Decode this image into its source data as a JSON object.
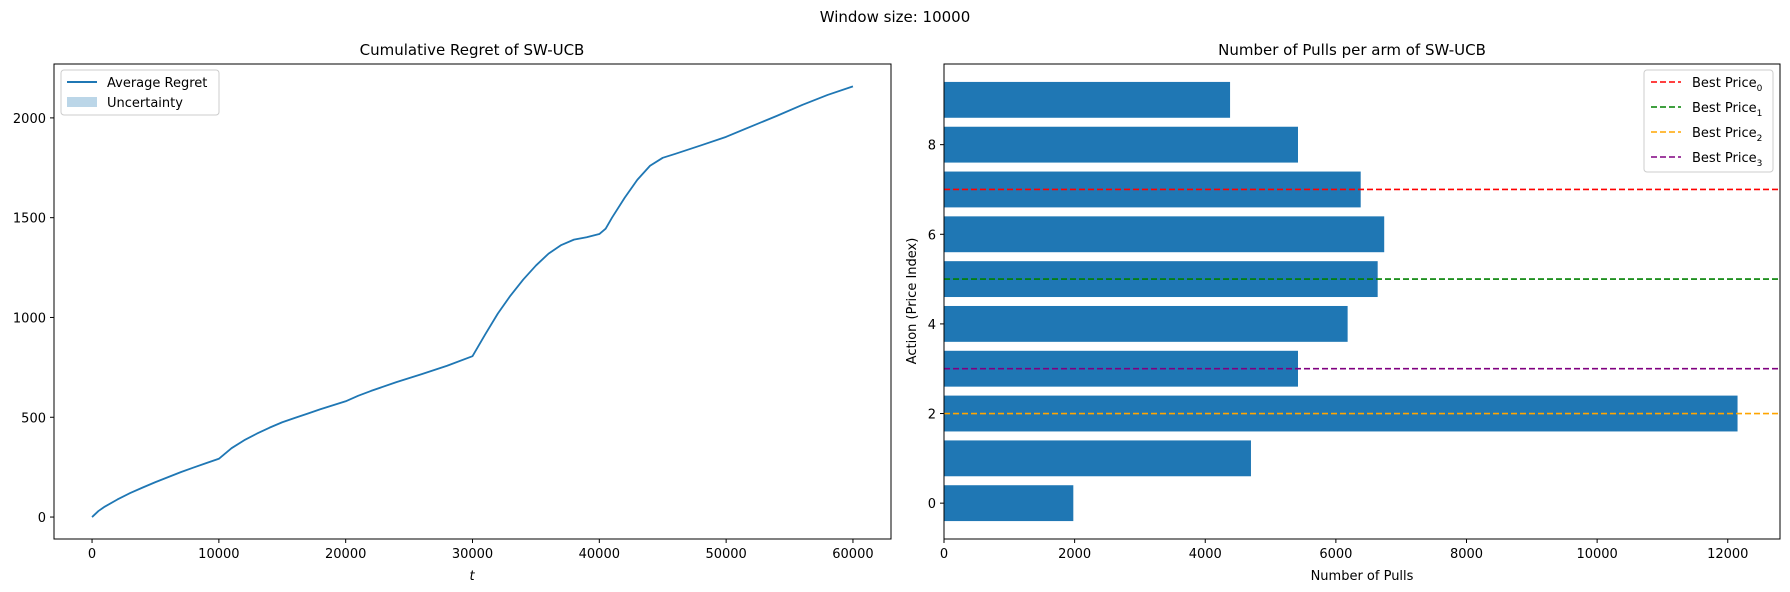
{
  "figure": {
    "suptitle": "Window size: 10000"
  },
  "chart_data": [
    {
      "type": "line",
      "title": "Cumulative Regret of SW-UCB",
      "xlabel": "t",
      "ylabel": "",
      "xlim": [
        -3000,
        63000
      ],
      "ylim": [
        -110,
        2270
      ],
      "xticks": [
        0,
        10000,
        20000,
        30000,
        40000,
        50000,
        60000
      ],
      "yticks": [
        0,
        500,
        1000,
        1500,
        2000
      ],
      "legend_position": "upper-left",
      "series": [
        {
          "name": "Average Regret",
          "color": "#1f77b4",
          "x": [
            0,
            500,
            1000,
            2000,
            3000,
            4000,
            5000,
            6000,
            7000,
            8000,
            9000,
            10000,
            11000,
            12000,
            13000,
            14000,
            15000,
            16000,
            17000,
            18000,
            19000,
            20000,
            21000,
            22000,
            24000,
            26000,
            28000,
            30000,
            31000,
            32000,
            33000,
            34000,
            35000,
            36000,
            37000,
            38000,
            39000,
            40000,
            40500,
            41000,
            42000,
            43000,
            44000,
            45000,
            46000,
            48000,
            50000,
            52000,
            54000,
            56000,
            58000,
            60000
          ],
          "y": [
            0,
            30,
            52,
            88,
            120,
            148,
            175,
            200,
            225,
            248,
            270,
            292,
            345,
            385,
            418,
            448,
            475,
            497,
            518,
            540,
            560,
            580,
            608,
            632,
            676,
            716,
            758,
            806,
            915,
            1020,
            1110,
            1190,
            1260,
            1320,
            1363,
            1390,
            1402,
            1418,
            1445,
            1500,
            1600,
            1690,
            1760,
            1800,
            1820,
            1862,
            1905,
            1958,
            2010,
            2065,
            2115,
            2158
          ]
        },
        {
          "name": "Uncertainty",
          "color": "#1f77b4",
          "band_halfwidth": 0
        }
      ]
    },
    {
      "type": "bar",
      "orientation": "horizontal",
      "title": "Number of Pulls per arm of SW-UCB",
      "xlabel": "Number of Pulls",
      "ylabel": "Action (Price Index)",
      "xlim": [
        0,
        12800
      ],
      "ylim": [
        -0.8,
        9.8
      ],
      "xticks": [
        0,
        2000,
        4000,
        6000,
        8000,
        10000,
        12000
      ],
      "yticks": [
        0,
        2,
        4,
        6,
        8
      ],
      "legend_position": "upper-right",
      "bar_color": "#1f77b4",
      "categories": [
        0,
        1,
        2,
        3,
        4,
        5,
        6,
        7,
        8,
        9
      ],
      "values": [
        1980,
        4700,
        12150,
        5420,
        6180,
        6640,
        6740,
        6380,
        5420,
        4380
      ],
      "reference_lines": [
        {
          "label": "Best Price",
          "sub": "0",
          "y": 7,
          "color": "#ff0000"
        },
        {
          "label": "Best Price",
          "sub": "1",
          "y": 5,
          "color": "#008000"
        },
        {
          "label": "Best Price",
          "sub": "2",
          "y": 2,
          "color": "#ffa500"
        },
        {
          "label": "Best Price",
          "sub": "3",
          "y": 3,
          "color": "#800080"
        }
      ]
    }
  ]
}
